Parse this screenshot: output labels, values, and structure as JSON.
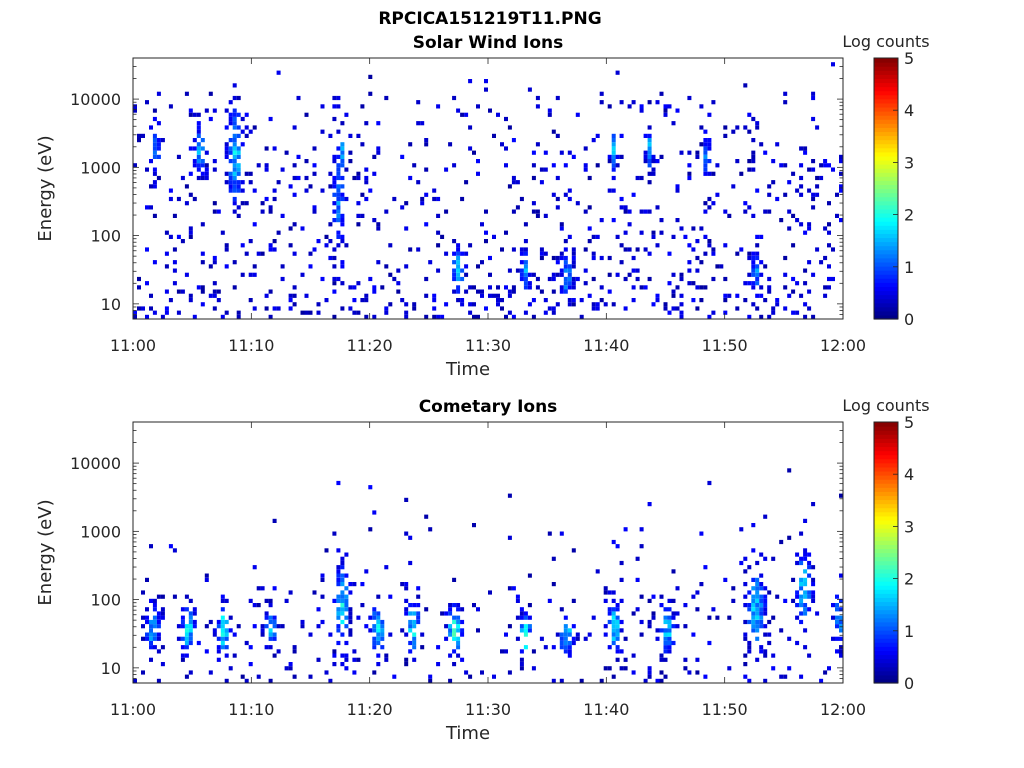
{
  "figure": {
    "filename_title": "RPCICA151219T11.PNG"
  },
  "chart_data": [
    {
      "type": "heatmap",
      "title": "Solar Wind Ions",
      "xlabel": "Time",
      "ylabel": "Energy (eV)",
      "x_ticks": [
        "11:00",
        "11:10",
        "11:20",
        "11:30",
        "11:40",
        "11:50",
        "12:00"
      ],
      "y_ticks": [
        "10",
        "100",
        "1000",
        "10000"
      ],
      "ylim": [
        6,
        40000
      ],
      "y_scale": "log",
      "colorbar": {
        "label": "Log counts",
        "ticks": [
          "0",
          "1",
          "2",
          "3",
          "4",
          "5"
        ],
        "range": [
          0,
          5
        ],
        "colormap": "jet"
      },
      "seed": 11,
      "profile": "solarwind",
      "blobs": [
        {
          "t": 1.8,
          "eV": 1800,
          "w": 0.4,
          "h": 0.35,
          "v": 1.8
        },
        {
          "t": 5.5,
          "eV": 1800,
          "w": 0.5,
          "h": 0.35,
          "v": 1.8
        },
        {
          "t": 8.5,
          "eV": 1500,
          "w": 0.7,
          "h": 0.7,
          "v": 2.0
        },
        {
          "t": 17.2,
          "eV": 400,
          "w": 0.5,
          "h": 0.9,
          "v": 1.6
        },
        {
          "t": 17.5,
          "eV": 1800,
          "w": 0.3,
          "h": 0.3,
          "v": 2.0
        },
        {
          "t": 40.5,
          "eV": 1800,
          "w": 0.3,
          "h": 0.3,
          "v": 1.9
        },
        {
          "t": 43.5,
          "eV": 1800,
          "w": 0.3,
          "h": 0.3,
          "v": 2.0
        },
        {
          "t": 48.3,
          "eV": 1300,
          "w": 0.3,
          "h": 0.3,
          "v": 1.8
        },
        {
          "t": 27.3,
          "eV": 30,
          "w": 0.5,
          "h": 0.3,
          "v": 2.2
        },
        {
          "t": 33.0,
          "eV": 30,
          "w": 0.4,
          "h": 0.3,
          "v": 1.8
        },
        {
          "t": 36.5,
          "eV": 25,
          "w": 0.5,
          "h": 0.3,
          "v": 1.8
        },
        {
          "t": 52.5,
          "eV": 30,
          "w": 0.5,
          "h": 0.3,
          "v": 1.6
        }
      ]
    },
    {
      "type": "heatmap",
      "title": "Cometary Ions",
      "xlabel": "Time",
      "ylabel": "Energy (eV)",
      "x_ticks": [
        "11:00",
        "11:10",
        "11:20",
        "11:30",
        "11:40",
        "11:50",
        "12:00"
      ],
      "y_ticks": [
        "10",
        "100",
        "1000",
        "10000"
      ],
      "ylim": [
        6,
        40000
      ],
      "y_scale": "log",
      "colorbar": {
        "label": "Log counts",
        "ticks": [
          "0",
          "1",
          "2",
          "3",
          "4",
          "5"
        ],
        "range": [
          0,
          5
        ],
        "colormap": "jet"
      },
      "seed": 29,
      "profile": "cometary",
      "blobs": [
        {
          "t": 1.5,
          "eV": 40,
          "w": 0.6,
          "h": 0.35,
          "v": 2.0
        },
        {
          "t": 4.5,
          "eV": 35,
          "w": 0.6,
          "h": 0.35,
          "v": 2.1
        },
        {
          "t": 7.5,
          "eV": 35,
          "w": 0.5,
          "h": 0.35,
          "v": 2.6
        },
        {
          "t": 11.5,
          "eV": 40,
          "w": 0.5,
          "h": 0.3,
          "v": 1.9
        },
        {
          "t": 17.5,
          "eV": 80,
          "w": 0.6,
          "h": 0.6,
          "v": 2.2
        },
        {
          "t": 20.5,
          "eV": 35,
          "w": 0.6,
          "h": 0.35,
          "v": 2.3
        },
        {
          "t": 23.5,
          "eV": 40,
          "w": 0.6,
          "h": 0.4,
          "v": 2.2
        },
        {
          "t": 27.0,
          "eV": 35,
          "w": 0.6,
          "h": 0.35,
          "v": 2.6
        },
        {
          "t": 33.0,
          "eV": 30,
          "w": 0.5,
          "h": 0.3,
          "v": 2.6
        },
        {
          "t": 36.5,
          "eV": 30,
          "w": 0.6,
          "h": 0.3,
          "v": 2.2
        },
        {
          "t": 40.5,
          "eV": 40,
          "w": 0.6,
          "h": 0.4,
          "v": 2.2
        },
        {
          "t": 45.0,
          "eV": 35,
          "w": 0.6,
          "h": 0.35,
          "v": 2.0
        },
        {
          "t": 52.5,
          "eV": 70,
          "w": 0.8,
          "h": 0.6,
          "v": 2.0
        },
        {
          "t": 56.5,
          "eV": 150,
          "w": 0.7,
          "h": 0.6,
          "v": 2.0
        },
        {
          "t": 59.5,
          "eV": 50,
          "w": 0.4,
          "h": 0.4,
          "v": 1.8
        }
      ]
    }
  ]
}
